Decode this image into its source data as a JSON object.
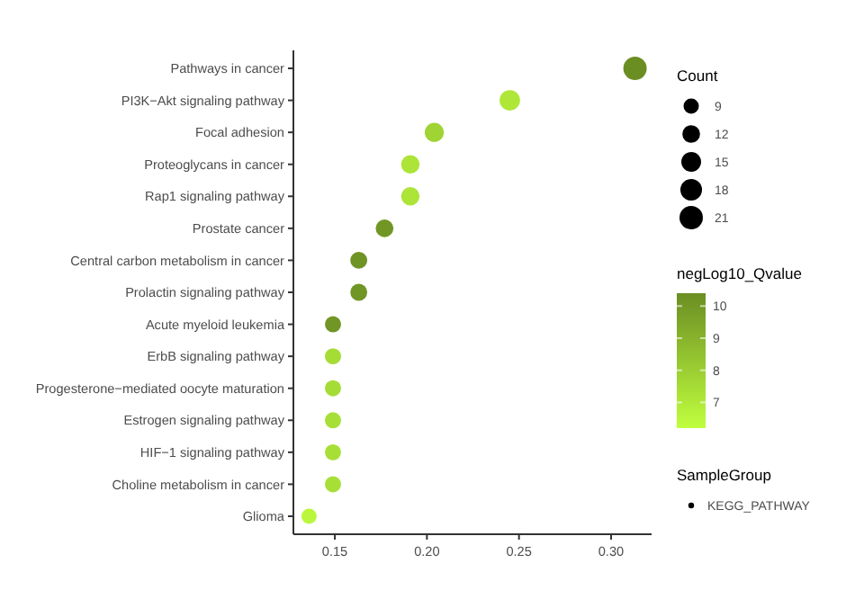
{
  "chart_data": {
    "type": "bubble",
    "orientation": "horizontal",
    "categories": [
      "Pathways in cancer",
      "PI3K−Akt signaling pathway",
      "Focal adhesion",
      "Proteoglycans in cancer",
      "Rap1 signaling pathway",
      "Prostate cancer",
      "Central carbon metabolism in cancer",
      "Prolactin signaling pathway",
      "Acute myeloid leukemia",
      "ErbB signaling pathway",
      "Progesterone−mediated oocyte maturation",
      "Estrogen signaling pathway",
      "HIF−1 signaling pathway",
      "Choline metabolism in cancer",
      "Glioma"
    ],
    "series": [
      {
        "name": "KEGG_PATHWAY",
        "values": [
          0.313,
          0.245,
          0.204,
          0.191,
          0.191,
          0.177,
          0.163,
          0.163,
          0.149,
          0.149,
          0.149,
          0.149,
          0.149,
          0.149,
          0.136
        ],
        "sizes": [
          21,
          16,
          14,
          13,
          13,
          12,
          11,
          11,
          10,
          10,
          10,
          10,
          10,
          10,
          9
        ],
        "cvalues": [
          10.4,
          7.1,
          7.8,
          7.2,
          7.2,
          10.1,
          10.2,
          10.1,
          10.1,
          7.5,
          7.5,
          7.4,
          7.4,
          7.4,
          6.5
        ]
      }
    ],
    "xlim": [
      0.1275,
      0.322
    ],
    "xticks": [
      0.15,
      {
        "value": 0.2,
        "label": "0.20"
      },
      0.25,
      {
        "value": 0.3,
        "label": "0.30"
      }
    ],
    "size_legend": [
      9,
      12,
      15,
      18,
      21
    ],
    "clabel": "negLog10_Qvalue",
    "clim": [
      6.2,
      10.4
    ],
    "cticks": [
      7,
      8,
      9,
      10
    ],
    "legend_title": "SampleGroup",
    "legend": "right",
    "grid": false,
    "annotations": [
      "Count"
    ]
  }
}
